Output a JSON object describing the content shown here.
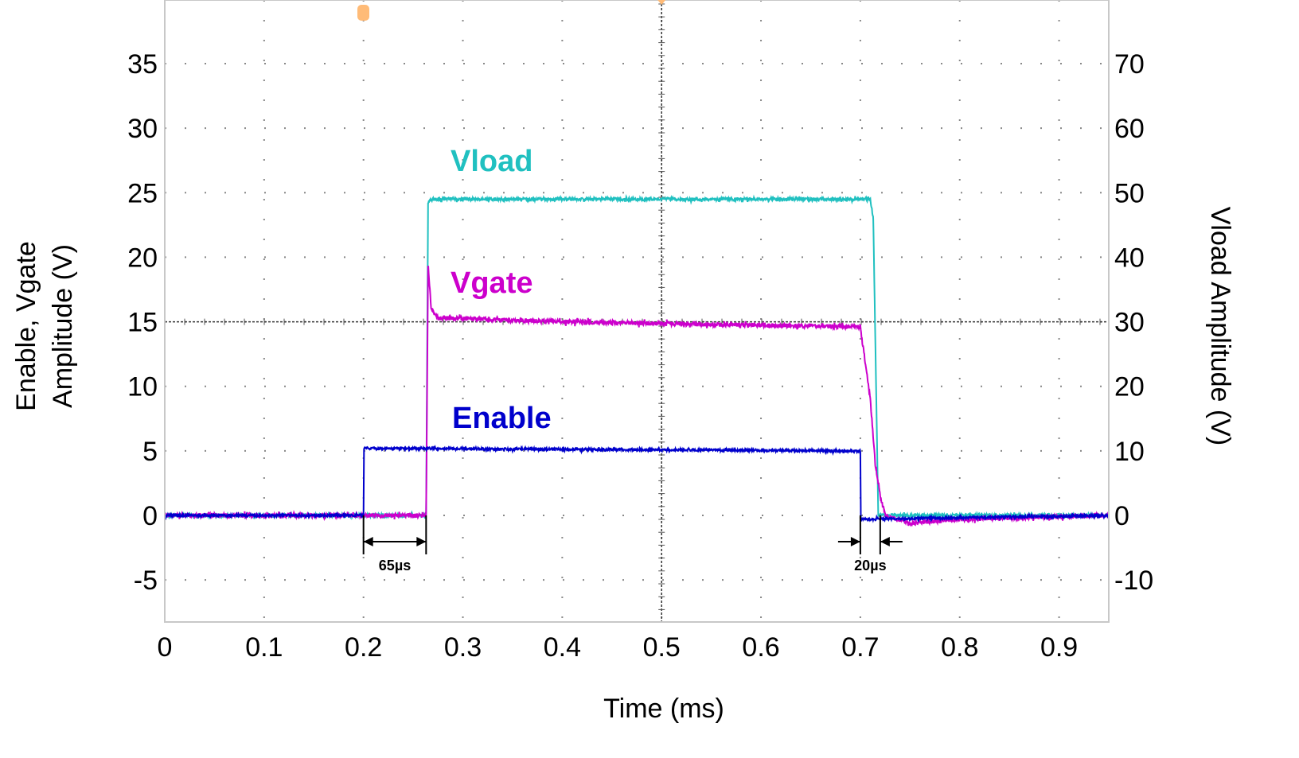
{
  "chart_data": {
    "type": "line",
    "title": "",
    "xlabel": "Time (ms)",
    "ylabel_left": [
      "Enable, Vgate",
      "Amplitude (V)"
    ],
    "ylabel_right": "Vload Amplitude (V)",
    "xlim": [
      0,
      0.95
    ],
    "ylim_left": [
      -8.3,
      40
    ],
    "ylim_right": [
      -16.6,
      80
    ],
    "x_ticks": [
      "0",
      "0.1",
      "0.2",
      "0.3",
      "0.4",
      "0.5",
      "0.6",
      "0.7",
      "0.8",
      "0.9"
    ],
    "y_ticks_left": [
      "35",
      "30",
      "25",
      "20",
      "15",
      "10",
      "5",
      "0",
      "-5"
    ],
    "y_ticks_right": [
      "70",
      "60",
      "50",
      "40",
      "30",
      "20",
      "10",
      "0",
      "-10"
    ],
    "grid": true,
    "colors": {
      "Vload": "#20c0c0",
      "Vgate": "#cc00cc",
      "Enable": "#0000cc",
      "marker": "#ffbb77"
    },
    "series": [
      {
        "name": "Vload",
        "axis": "right",
        "x": [
          0,
          0.263,
          0.265,
          0.27,
          0.71,
          0.713,
          0.718,
          0.95
        ],
        "y": [
          0,
          0,
          48.5,
          49,
          49,
          46,
          0,
          0
        ]
      },
      {
        "name": "Vgate",
        "axis": "left",
        "x": [
          0,
          0.263,
          0.265,
          0.268,
          0.275,
          0.4,
          0.7,
          0.71,
          0.715,
          0.72,
          0.725,
          0.75,
          0.8,
          0.95
        ],
        "y": [
          0,
          0,
          19.5,
          16,
          15.3,
          15,
          14.6,
          9,
          4,
          1.5,
          0,
          -0.6,
          -0.3,
          0
        ]
      },
      {
        "name": "Enable",
        "axis": "left",
        "x": [
          0,
          0.2,
          0.2005,
          0.7,
          0.7005,
          0.95
        ],
        "y": [
          0,
          0,
          5.2,
          5,
          -0.3,
          0
        ]
      }
    ],
    "annotations": [
      {
        "text": "65µs",
        "from": 0.2,
        "to": 0.263
      },
      {
        "text": "20µs",
        "from": 0.7,
        "to": 0.72
      }
    ]
  }
}
